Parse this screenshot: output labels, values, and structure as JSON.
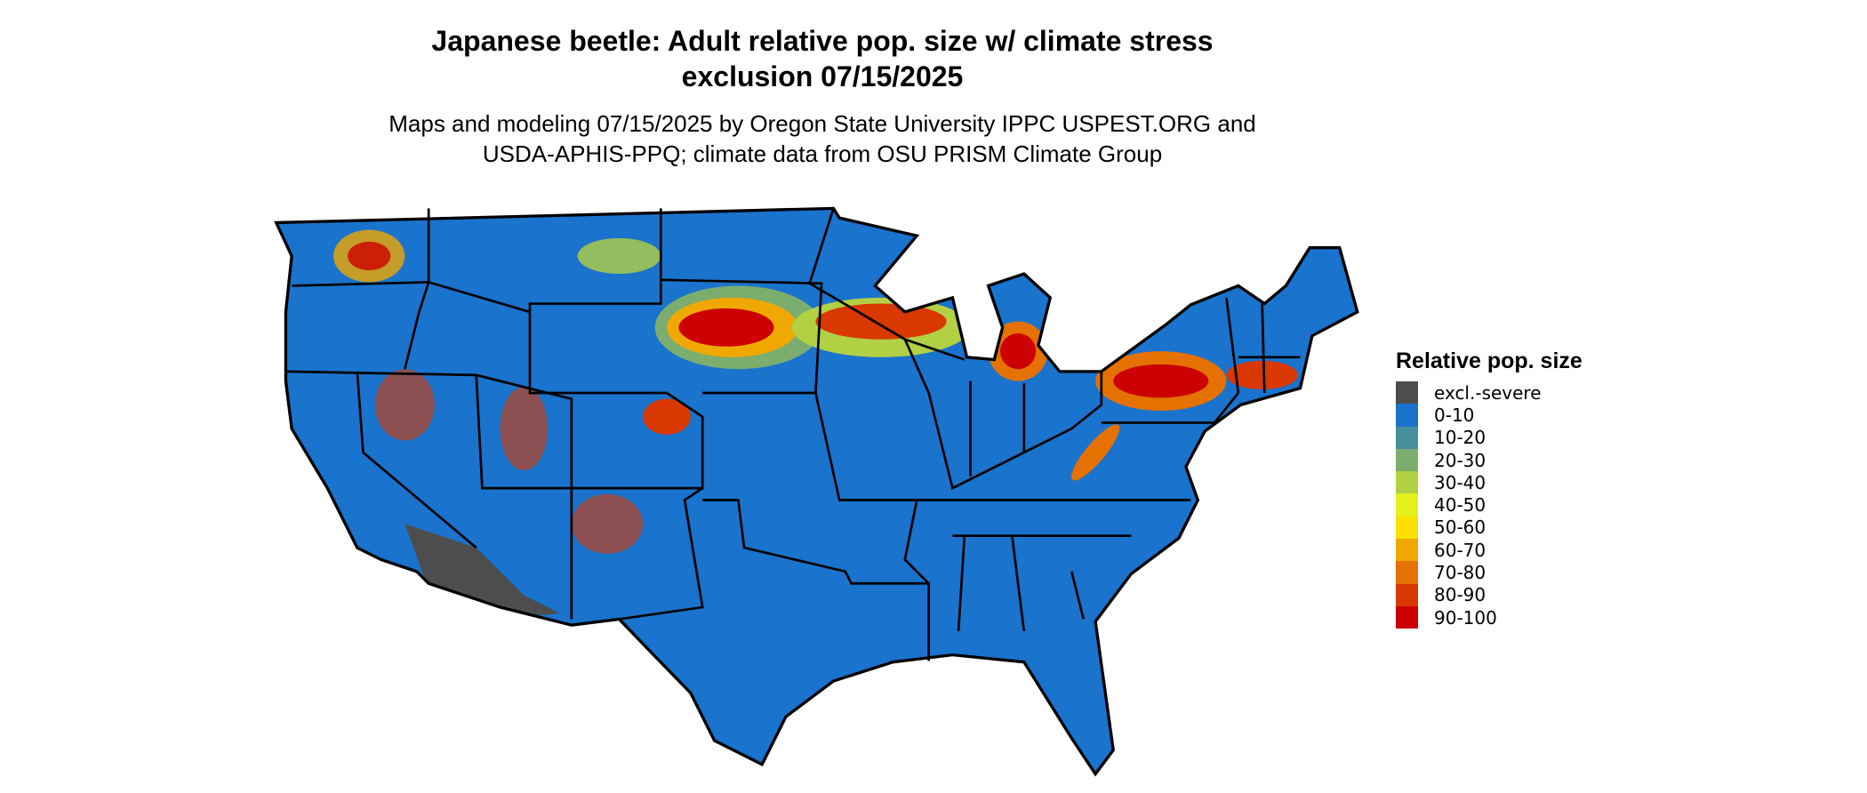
{
  "title": {
    "line1": "Japanese beetle: Adult relative pop. size w/ climate stress",
    "line2": "exclusion 07/15/2025"
  },
  "subtitle": {
    "line1": "Maps and modeling 07/15/2025 by Oregon State University IPPC USPEST.ORG and",
    "line2": "USDA-APHIS-PPQ; climate data from OSU PRISM Climate Group"
  },
  "map": {
    "region": "Contiguous United States",
    "base_color": "#1a73cc",
    "border_color": "#000000"
  },
  "legend": {
    "title": "Relative pop. size",
    "items": [
      {
        "label": "excl.-severe",
        "color": "#4d4d4d"
      },
      {
        "label": "0-10",
        "color": "#1a73cc"
      },
      {
        "label": "10-20",
        "color": "#468f9c"
      },
      {
        "label": "20-30",
        "color": "#7bae6e"
      },
      {
        "label": "30-40",
        "color": "#b2d044"
      },
      {
        "label": "40-50",
        "color": "#e3f01a"
      },
      {
        "label": "50-60",
        "color": "#f9e000"
      },
      {
        "label": "60-70",
        "color": "#f0a800"
      },
      {
        "label": "70-80",
        "color": "#e57100"
      },
      {
        "label": "80-90",
        "color": "#d93800"
      },
      {
        "label": "90-100",
        "color": "#cc0000"
      }
    ]
  }
}
